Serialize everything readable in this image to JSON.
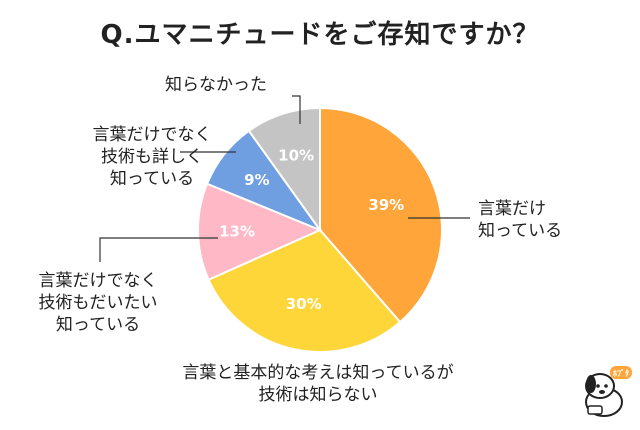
{
  "title": "Q.ユマニチュードをご存知ですか？",
  "chart_data": {
    "type": "pie",
    "title": "Q.ユマニチュードをご存知ですか？",
    "slices": [
      {
        "label": "言葉だけ\n知っている",
        "value": 39,
        "value_label": "39%",
        "color": "#FFA53A"
      },
      {
        "label": "言葉と基本的な考えは知っているが\n技術は知らない",
        "value": 30,
        "value_label": "30%",
        "color": "#FFD63A"
      },
      {
        "label": "言葉だけでなく\n技術もだいたい\n知っている",
        "value": 13,
        "value_label": "13%",
        "color": "#FFB8C6"
      },
      {
        "label": "言葉だけでなく\n技術も詳しく\n知っている",
        "value": 9,
        "value_label": "9%",
        "color": "#6F9FE0"
      },
      {
        "label": "知らなかった",
        "value": 10,
        "value_label": "10%",
        "color": "#C4C4C4"
      }
    ]
  },
  "mascot": {
    "badge_text": "ﾎﾌﾟﾀ"
  }
}
